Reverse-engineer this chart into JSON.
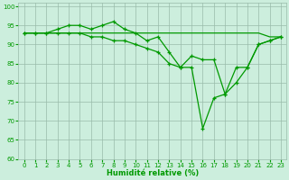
{
  "xlabel": "Humidité relative (%)",
  "background_color": "#cceedd",
  "grid_color": "#99bbaa",
  "line_color": "#009900",
  "xlim": [
    -0.5,
    23.5
  ],
  "ylim": [
    60,
    101
  ],
  "yticks": [
    60,
    65,
    70,
    75,
    80,
    85,
    90,
    95,
    100
  ],
  "xticks": [
    0,
    1,
    2,
    3,
    4,
    5,
    6,
    7,
    8,
    9,
    10,
    11,
    12,
    13,
    14,
    15,
    16,
    17,
    18,
    19,
    20,
    21,
    22,
    23
  ],
  "line1": [
    93,
    93,
    93,
    93,
    93,
    93,
    93,
    93,
    93,
    93,
    93,
    93,
    93,
    93,
    93,
    93,
    93,
    93,
    93,
    93,
    93,
    93,
    92,
    92
  ],
  "line2": [
    93,
    93,
    93,
    94,
    95,
    95,
    94,
    95,
    96,
    94,
    93,
    91,
    92,
    88,
    84,
    87,
    86,
    86,
    77,
    84,
    84,
    90,
    91,
    92
  ],
  "line3": [
    93,
    93,
    93,
    93,
    93,
    93,
    92,
    92,
    91,
    91,
    90,
    89,
    88,
    85,
    84,
    84,
    68,
    76,
    77,
    80,
    84,
    90,
    91,
    92
  ]
}
